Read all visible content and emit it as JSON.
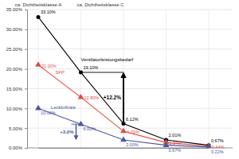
{
  "chart_data": {
    "type": "line",
    "categories": [
      null,
      null,
      null,
      null,
      null
    ],
    "series": [
      {
        "name": "Ventilatorleistungsbedarf",
        "color": "#000000",
        "marker": "circle",
        "values": [
          33.1,
          19.1,
          6.12,
          2.01,
          0.67
        ],
        "value_labels": [
          "33.10%",
          "19.10%",
          "6.12%",
          "2.01%",
          "0.67%"
        ]
      },
      {
        "name": "SFP",
        "color": "#e8483b",
        "marker": "triangle",
        "values": [
          21,
          12.8,
          4.2,
          1.34,
          0.44
        ],
        "value_labels": [
          "21.00%",
          "12.80%",
          "4.20%",
          "1.34%",
          "0.44%"
        ]
      },
      {
        "name": "Leckluftrate",
        "color": "#4b55a8",
        "marker": "triangle",
        "values": [
          10,
          6,
          2,
          0.67,
          0.22
        ],
        "value_labels": [
          "10.00%",
          "6.00%",
          "2.00%",
          "0.67%",
          "0.22%"
        ]
      }
    ],
    "ylim": [
      0,
      35
    ],
    "yticks": [
      {
        "value": 0,
        "label": "0.00%"
      },
      {
        "value": 5,
        "label": "5.00%"
      },
      {
        "value": 10,
        "label": "10.00%"
      },
      {
        "value": 15,
        "label": "15.00%"
      },
      {
        "value": 20,
        "label": "20.00%"
      },
      {
        "value": 25,
        "label": "25.00%"
      },
      {
        "value": 30,
        "label": "30.00%"
      },
      {
        "value": 35,
        "label": "35.00%"
      }
    ],
    "grid": true,
    "tick_labels": "y",
    "data_labels": true,
    "annotations": [
      "ca. Dichtheitsklasse A",
      "ca. Dichtheitsklasse C",
      "+12.2%",
      "+3.0%"
    ]
  }
}
